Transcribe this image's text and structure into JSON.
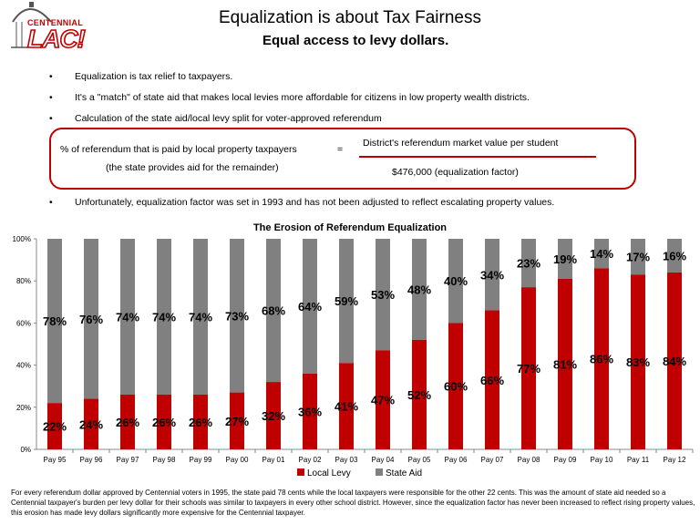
{
  "logo": {
    "top_text": "CENTENNIAL",
    "main_text": "LAC!"
  },
  "header": {
    "title": "Equalization is about Tax Fairness",
    "subtitle": "Equal access to levy dollars."
  },
  "bullets": [
    "Equalization is tax relief to taxpayers.",
    "It's a \"match\" of state aid that makes local levies more affordable for citizens in low property wealth districts.",
    "Calculation of the state aid/local levy split for voter-approved referendum",
    "Unfortunately, equalization factor was set in 1993 and has not been adjusted to reflect escalating property values."
  ],
  "bullet_symbol": "•",
  "formula": {
    "left_line1": "% of referendum that is paid by local property taxpayers",
    "left_line2": "(the state provides aid for the remainder)",
    "equals": "=",
    "numerator": "District's referendum market value per student",
    "denominator": "$476,000 (equalization factor)"
  },
  "chart_data": {
    "type": "bar",
    "stacked": true,
    "title": "The Erosion of Referendum Equalization",
    "categories": [
      "Pay 95",
      "Pay 96",
      "Pay 97",
      "Pay 98",
      "Pay 99",
      "Pay 00",
      "Pay 01",
      "Pay 02",
      "Pay 03",
      "Pay 04",
      "Pay 05",
      "Pay 06",
      "Pay 07",
      "Pay 08",
      "Pay 09",
      "Pay 10",
      "Pay 11",
      "Pay 12"
    ],
    "series": [
      {
        "name": "Local Levy",
        "color": "#c00000",
        "values": [
          22,
          24,
          26,
          26,
          26,
          27,
          32,
          36,
          41,
          47,
          52,
          60,
          66,
          77,
          81,
          86,
          83,
          84
        ]
      },
      {
        "name": "State Aid",
        "color": "#808080",
        "values": [
          78,
          76,
          74,
          74,
          74,
          73,
          68,
          64,
          59,
          53,
          48,
          40,
          34,
          23,
          19,
          14,
          17,
          16
        ]
      }
    ],
    "yticks": [
      "0%",
      "20%",
      "40%",
      "60%",
      "80%",
      "100%"
    ],
    "ylim": [
      0,
      100
    ],
    "legend": "bottom"
  },
  "footer": "For every referendum dollar approved by Centennial voters in 1995, the state paid 78 cents while the local taxpayers were responsible for the other 22 cents.  This was the amount of state aid needed so a Centennial taxpayer's  burden per levy dollar for their schools was similar to taxpayers in every other school district.  However, since the equalization factor has never been increased to reflect rising property values, this erosion has made levy dollars significantly more expensive for the Centennial taxpayer."
}
